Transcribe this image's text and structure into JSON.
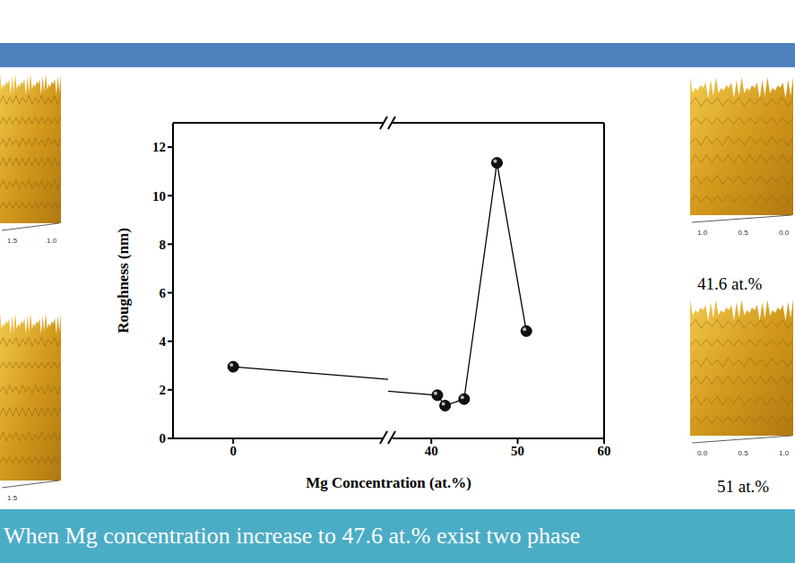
{
  "chart_data": {
    "type": "line",
    "x_label": "Mg Concentration (at.%)",
    "y_label": "Roughness (nm)",
    "x": [
      0,
      40.7,
      41.6,
      43.8,
      47.6,
      51
    ],
    "values": [
      2.95,
      1.78,
      1.35,
      1.62,
      11.35,
      4.42
    ],
    "color": "#000000",
    "marker": "circle",
    "xlim": [
      -7,
      60
    ],
    "x_break": [
      18,
      35
    ],
    "xticks": [
      0,
      40,
      50,
      60
    ],
    "ylim": [
      0,
      13
    ],
    "yticks": [
      0,
      2,
      4,
      6,
      8,
      10,
      12
    ],
    "grid": false
  },
  "images": [
    {
      "ticks": [
        "1.5",
        "1.0"
      ]
    },
    {
      "ticks": [
        "1.5"
      ]
    },
    {
      "label": "41.6 at.%",
      "ticks": [
        "1.0",
        "0.5",
        "0.0"
      ]
    },
    {
      "label": "51 at.%",
      "ticks": [
        "0.0",
        "0.5",
        "1.0"
      ]
    }
  ],
  "caption": "When Mg concentration increase to 47.6 at.% exist two phase"
}
